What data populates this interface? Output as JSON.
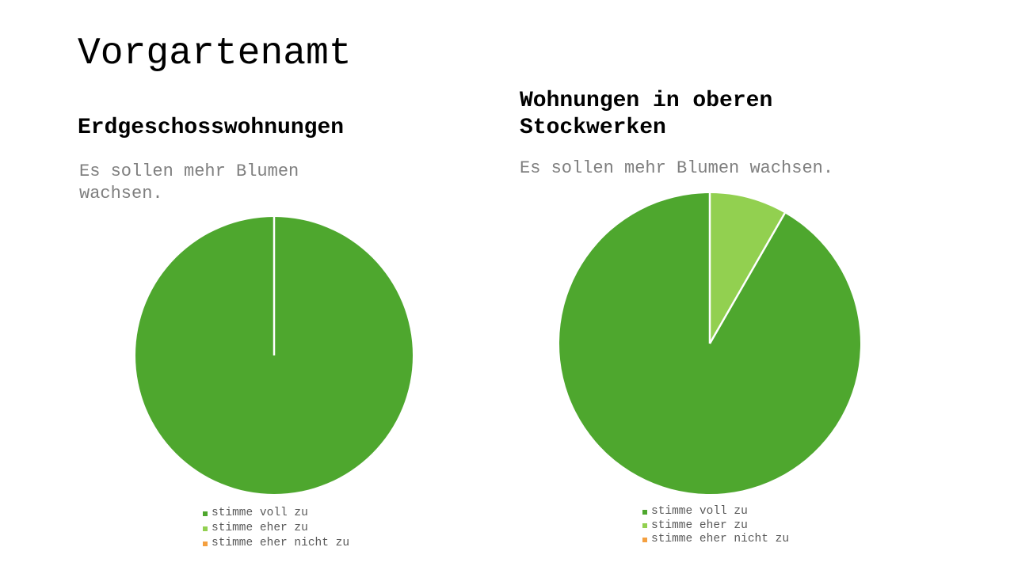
{
  "slide": {
    "title": "Vorgartenamt"
  },
  "colors": {
    "stimme_voll_zu": "#4ea72e",
    "stimme_eher_zu": "#92d050",
    "stimme_eher_nicht_zu": "#f4a040",
    "separator": "#ffffff"
  },
  "chart_data": [
    {
      "type": "pie",
      "heading": "Erdgeschosswohnungen",
      "title": "Es sollen mehr Blumen wachsen.",
      "categories": [
        "stimme voll zu",
        "stimme eher zu",
        "stimme eher nicht zu"
      ],
      "values": [
        100,
        0,
        0
      ],
      "legend": "bottom"
    },
    {
      "type": "pie",
      "heading": "Wohnungen in oberen\nStockwerken",
      "title": "Es sollen mehr Blumen wachsen.",
      "categories": [
        "stimme voll zu",
        "stimme eher zu",
        "stimme eher nicht zu"
      ],
      "values": [
        91.7,
        8.3,
        0
      ],
      "legend": "bottom"
    }
  ]
}
